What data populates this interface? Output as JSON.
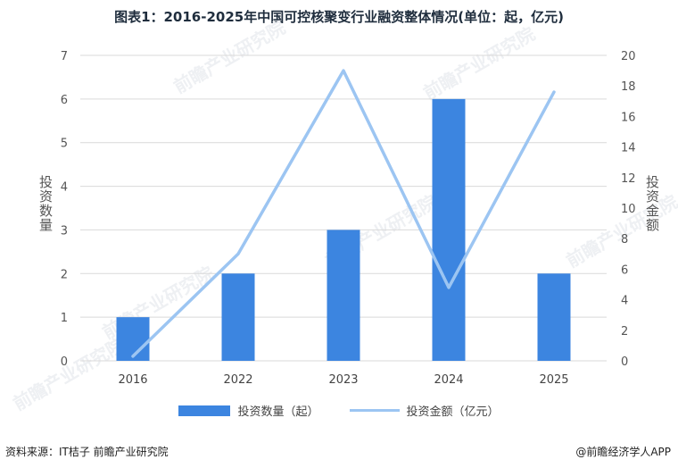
{
  "title": "图表1：2016-2025年中国可控核聚变行业融资整体情况(单位：起，亿元)",
  "left_axis_label": "投资数量",
  "right_axis_label": "投资金额",
  "legend": {
    "bars": "投资数量（起）",
    "line": "投资金额（亿元）"
  },
  "footer": {
    "source": "资料来源：IT桔子 前瞻产业研究院",
    "brand": "@前瞻经济学人APP"
  },
  "watermark": "前瞻产业研究院",
  "colors": {
    "bar": "#3c85e0",
    "line": "#9cc5f2",
    "grid": "#d9d9d9"
  },
  "chart_data": {
    "type": "bar",
    "categories": [
      "2016",
      "2022",
      "2023",
      "2024",
      "2025"
    ],
    "series": [
      {
        "name": "投资数量（起）",
        "type": "bar",
        "axis": "left",
        "values": [
          1,
          2,
          3,
          6,
          2
        ]
      },
      {
        "name": "投资金额（亿元）",
        "type": "line",
        "axis": "right",
        "values": [
          0.3,
          7,
          19,
          4.8,
          17.6
        ]
      }
    ],
    "ylim_left": [
      0,
      7
    ],
    "yticks_left": [
      "0",
      "1",
      "2",
      "3",
      "4",
      "5",
      "6",
      "7"
    ],
    "ylim_right": [
      0,
      20
    ],
    "yticks_right": [
      "0",
      "2",
      "4",
      "6",
      "8",
      "10",
      "12",
      "14",
      "16",
      "18",
      "20"
    ],
    "grid": true,
    "legend_position": "bottom"
  }
}
